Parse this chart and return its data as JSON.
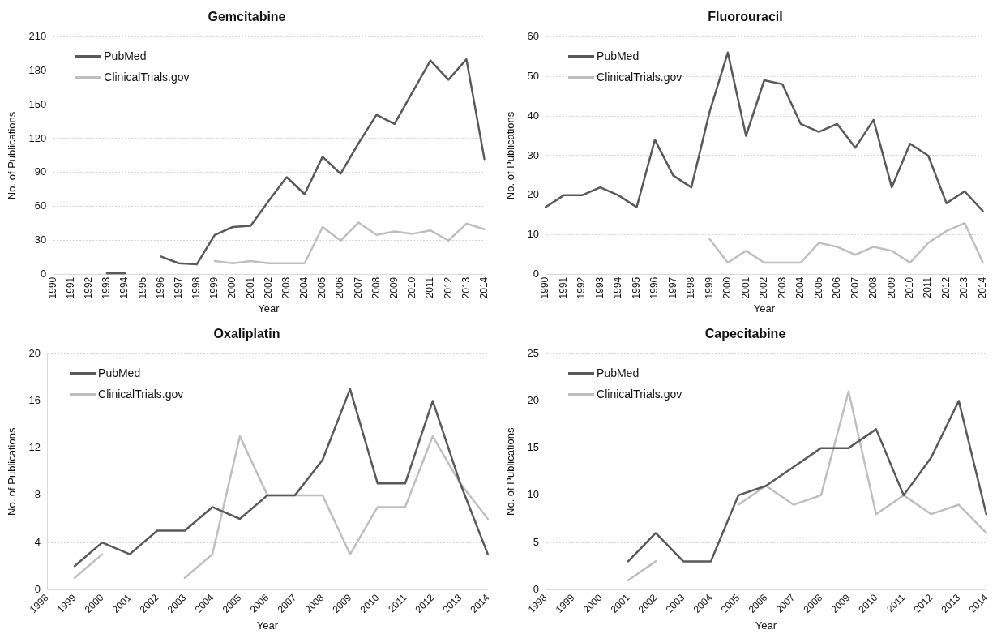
{
  "chart_data": [
    {
      "type": "line",
      "title": "Gemcitabine",
      "xlabel": "Year",
      "ylabel": "No. of Publications",
      "categories": [
        "1990",
        "1991",
        "1992",
        "1993",
        "1994",
        "1995",
        "1996",
        "1997",
        "1998",
        "1999",
        "2000",
        "2001",
        "2002",
        "2003",
        "2004",
        "2005",
        "2006",
        "2007",
        "2008",
        "2009",
        "2010",
        "2011",
        "2012",
        "2013",
        "2014"
      ],
      "series": [
        {
          "name": "PubMed",
          "color": "#595959",
          "values": [
            null,
            null,
            null,
            1,
            1,
            null,
            16,
            10,
            9,
            35,
            42,
            43,
            65,
            86,
            71,
            104,
            89,
            116,
            141,
            133,
            161,
            189,
            172,
            190,
            102
          ]
        },
        {
          "name": "ClinicalTrials.gov",
          "color": "#bfbfbf",
          "values": [
            null,
            null,
            null,
            null,
            null,
            null,
            null,
            null,
            null,
            12,
            10,
            12,
            10,
            10,
            10,
            42,
            30,
            46,
            35,
            38,
            36,
            39,
            30,
            45,
            40
          ]
        }
      ],
      "ylim": [
        0,
        210
      ],
      "yticks": [
        0,
        30,
        60,
        90,
        120,
        150,
        180,
        210
      ],
      "grid": "y",
      "legend": "top left",
      "marker": "none",
      "line_style": "solid"
    },
    {
      "type": "line",
      "title": "Fluorouracil",
      "xlabel": "Year",
      "ylabel": "No. of Publications",
      "categories": [
        "1990",
        "1991",
        "1992",
        "1993",
        "1994",
        "1995",
        "1996",
        "1997",
        "1998",
        "1999",
        "2000",
        "2001",
        "2002",
        "2003",
        "2004",
        "2005",
        "2006",
        "2007",
        "2008",
        "2009",
        "2010",
        "2011",
        "2012",
        "2013",
        "2014"
      ],
      "series": [
        {
          "name": "PubMed",
          "color": "#595959",
          "values": [
            17,
            20,
            20,
            22,
            20,
            17,
            34,
            25,
            22,
            41,
            56,
            35,
            49,
            48,
            38,
            36,
            38,
            32,
            39,
            22,
            33,
            30,
            18,
            21,
            16
          ]
        },
        {
          "name": "ClinicalTrials.gov",
          "color": "#bfbfbf",
          "values": [
            null,
            null,
            null,
            null,
            null,
            null,
            null,
            null,
            null,
            9,
            3,
            6,
            3,
            3,
            3,
            8,
            7,
            5,
            7,
            6,
            3,
            8,
            11,
            13,
            3
          ]
        }
      ],
      "ylim": [
        0,
        60
      ],
      "yticks": [
        0,
        10,
        20,
        30,
        40,
        50,
        60
      ],
      "grid": "y",
      "legend": "top left",
      "marker": "none",
      "line_style": "solid"
    },
    {
      "type": "line",
      "title": "Oxaliplatin",
      "xlabel": "Year",
      "ylabel": "No. of Publications",
      "categories": [
        "1998",
        "1999",
        "2000",
        "2001",
        "2002",
        "2003",
        "2004",
        "2005",
        "2006",
        "2007",
        "2008",
        "2009",
        "2010",
        "2011",
        "2012",
        "2013",
        "2014"
      ],
      "series": [
        {
          "name": "PubMed",
          "color": "#595959",
          "values": [
            null,
            2,
            4,
            3,
            5,
            5,
            7,
            6,
            8,
            8,
            11,
            17,
            9,
            9,
            16,
            9,
            3
          ]
        },
        {
          "name": "ClinicalTrials.gov",
          "color": "#bfbfbf",
          "values": [
            null,
            1,
            3,
            null,
            null,
            1,
            3,
            13,
            8,
            8,
            8,
            3,
            7,
            7,
            13,
            9,
            6
          ]
        }
      ],
      "ylim": [
        0,
        20
      ],
      "yticks": [
        0,
        4,
        8,
        12,
        16,
        20
      ],
      "grid": "y",
      "legend": "top left",
      "marker": "none",
      "line_style": "solid"
    },
    {
      "type": "line",
      "title": "Capecitabine",
      "xlabel": "Year",
      "ylabel": "No. of Publications",
      "categories": [
        "1998",
        "1999",
        "2000",
        "2001",
        "2002",
        "2003",
        "2004",
        "2005",
        "2006",
        "2007",
        "2008",
        "2009",
        "2010",
        "2011",
        "2012",
        "2013",
        "2014"
      ],
      "series": [
        {
          "name": "PubMed",
          "color": "#595959",
          "values": [
            null,
            null,
            null,
            3,
            6,
            3,
            3,
            10,
            11,
            13,
            15,
            15,
            17,
            10,
            14,
            20,
            8
          ]
        },
        {
          "name": "ClinicalTrials.gov",
          "color": "#bfbfbf",
          "values": [
            null,
            null,
            null,
            1,
            3,
            null,
            null,
            9,
            11,
            9,
            10,
            21,
            8,
            10,
            8,
            9,
            6
          ]
        }
      ],
      "ylim": [
        0,
        25
      ],
      "yticks": [
        0,
        5,
        10,
        15,
        20,
        25
      ],
      "grid": "y",
      "legend": "top left",
      "marker": "none",
      "line_style": "solid"
    }
  ]
}
